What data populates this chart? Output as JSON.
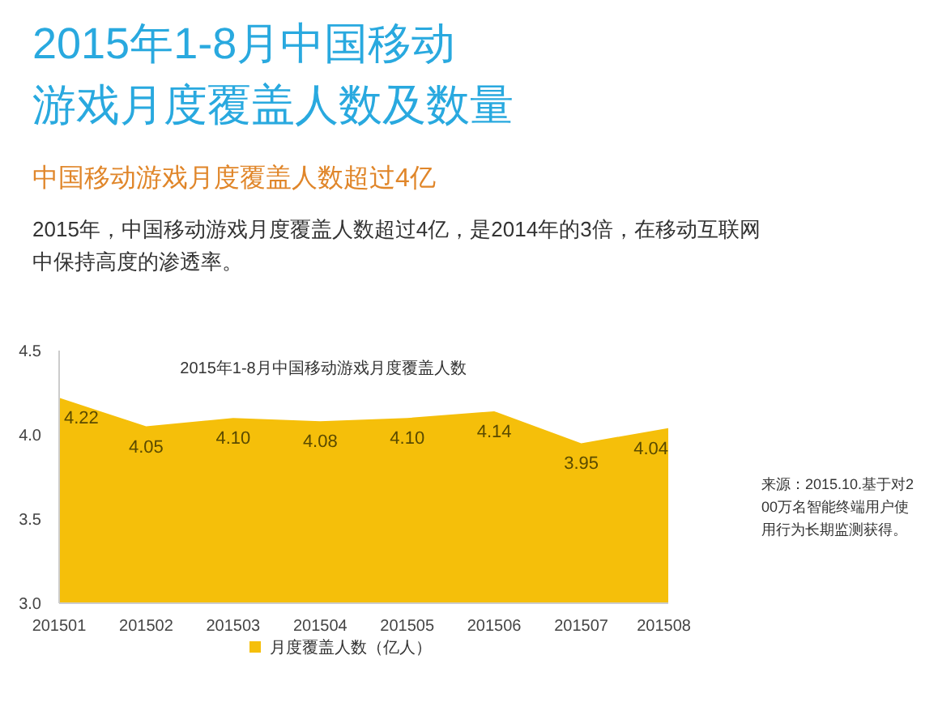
{
  "chart_data": {
    "type": "area",
    "title": "2015年1-8月中国移动游戏月度覆盖人数及数量",
    "subtitle": "中国移动游戏月度覆盖人数超过4亿",
    "annotations": [
      "2015年，中国移动游戏月度覆盖人数超过4亿，是2014年的3倍，在移动互联网中保持高度的渗透率。",
      "2015年1-8月中国移动游戏月度覆盖人数",
      "来源：2015.10.基于对200万名智能终端用户使用行为长期监测获得。"
    ],
    "categories": [
      "201501",
      "201502",
      "201503",
      "201504",
      "201505",
      "201506",
      "201507",
      "201508"
    ],
    "series": [
      {
        "name": "月度覆盖人数（亿人）",
        "color": "#f5bf0a",
        "values": [
          4.22,
          4.05,
          4.1,
          4.08,
          4.1,
          4.14,
          3.95,
          4.04
        ],
        "value_labels": [
          "4.22",
          "4.05",
          "4.10",
          "4.08",
          "4.10",
          "4.14",
          "3.95",
          "4.04"
        ]
      }
    ],
    "ylim": [
      3.0,
      4.5
    ],
    "yticks": [
      {
        "value": 3,
        "label": "3.0"
      },
      3.5,
      {
        "value": 4,
        "label": "4.0"
      },
      4.5
    ],
    "legend": "bottom",
    "grid": false
  }
}
